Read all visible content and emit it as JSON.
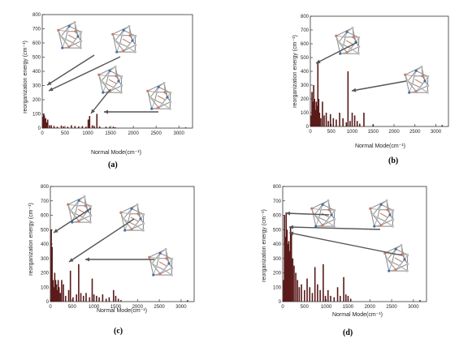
{
  "panels": [
    {
      "label": "(a)"
    },
    {
      "label": "(b)"
    },
    {
      "label": "(c)"
    },
    {
      "label": "(d)"
    }
  ],
  "chart_data": [
    {
      "type": "bar",
      "panel": "(a)",
      "xlabel": "Normal Mode(cm⁻¹)",
      "ylabel": "reorganization energy (cm⁻¹)",
      "xlim": [
        0,
        3300
      ],
      "ylim": [
        0,
        800
      ],
      "xticks": [
        0,
        500,
        1000,
        1500,
        2000,
        2500,
        3000
      ],
      "yticks": [
        0,
        100,
        200,
        300,
        400,
        500,
        600,
        700,
        800
      ],
      "x": [
        15,
        30,
        45,
        60,
        75,
        95,
        120,
        160,
        200,
        260,
        330,
        420,
        470,
        560,
        640,
        720,
        800,
        880,
        960,
        1010,
        1040,
        1100,
        1140,
        1200,
        1260,
        1400,
        1480,
        1560,
        1600,
        3150
      ],
      "values": [
        80,
        100,
        90,
        60,
        70,
        40,
        60,
        20,
        20,
        15,
        10,
        18,
        12,
        10,
        20,
        15,
        12,
        14,
        10,
        60,
        85,
        20,
        15,
        100,
        12,
        10,
        8,
        10,
        6,
        5
      ],
      "colors": {
        "bar": "#5a1a1a",
        "axis": "#333333",
        "arrow": "#555555"
      }
    },
    {
      "type": "bar",
      "panel": "(b)",
      "xlabel": "Normal Mode(cm⁻¹)",
      "ylabel": "reorganization energy (cm⁻¹)",
      "xlim": [
        0,
        3300
      ],
      "ylim": [
        0,
        800
      ],
      "xticks": [
        0,
        500,
        1000,
        1500,
        2000,
        2500,
        3000
      ],
      "yticks": [
        0,
        100,
        200,
        300,
        400,
        500,
        600,
        700,
        800
      ],
      "x": [
        20,
        40,
        60,
        80,
        100,
        120,
        140,
        160,
        180,
        200,
        220,
        250,
        290,
        330,
        380,
        430,
        480,
        550,
        620,
        700,
        780,
        860,
        900,
        950,
        1000,
        1060,
        1120,
        1180,
        1280,
        1500,
        3150
      ],
      "values": [
        80,
        250,
        180,
        300,
        200,
        120,
        180,
        150,
        470,
        200,
        100,
        60,
        180,
        80,
        100,
        40,
        90,
        60,
        50,
        100,
        60,
        30,
        400,
        40,
        100,
        80,
        40,
        20,
        100,
        15,
        10
      ],
      "colors": {
        "bar": "#5a1a1a",
        "axis": "#333333",
        "arrow": "#555555"
      }
    },
    {
      "type": "bar",
      "panel": "(c)",
      "xlabel": "Normal Mode(cm⁻¹)",
      "ylabel": "reorganization energy (cm⁻¹)",
      "xlim": [
        0,
        3300
      ],
      "ylim": [
        0,
        800
      ],
      "xticks": [
        0,
        500,
        1000,
        1500,
        2000,
        2500,
        3000
      ],
      "yticks": [
        0,
        100,
        200,
        300,
        400,
        500,
        600,
        700,
        800
      ],
      "x": [
        20,
        40,
        60,
        80,
        100,
        120,
        140,
        160,
        180,
        200,
        230,
        260,
        300,
        350,
        420,
        460,
        520,
        600,
        650,
        700,
        760,
        820,
        900,
        960,
        1000,
        1060,
        1120,
        1200,
        1280,
        1350,
        1450,
        1500,
        1560,
        1620,
        3150
      ],
      "values": [
        500,
        380,
        150,
        100,
        200,
        150,
        120,
        80,
        150,
        100,
        60,
        150,
        120,
        40,
        80,
        215,
        30,
        50,
        260,
        60,
        40,
        60,
        30,
        160,
        50,
        40,
        30,
        50,
        20,
        30,
        80,
        40,
        20,
        10,
        10
      ],
      "colors": {
        "bar": "#5a1a1a",
        "axis": "#333333",
        "arrow": "#555555"
      }
    },
    {
      "type": "bar",
      "panel": "(d)",
      "xlabel": "Normal Mode(cm⁻¹)",
      "ylabel": "reorganization energy (cm⁻¹)",
      "xlim": [
        0,
        3300
      ],
      "ylim": [
        0,
        800
      ],
      "xticks": [
        0,
        500,
        1000,
        1500,
        2000,
        2500,
        3000
      ],
      "yticks": [
        0,
        100,
        200,
        300,
        400,
        500,
        600,
        700,
        800
      ],
      "x": [
        20,
        40,
        60,
        80,
        100,
        120,
        140,
        160,
        180,
        200,
        230,
        260,
        300,
        340,
        380,
        430,
        500,
        560,
        620,
        680,
        740,
        800,
        860,
        930,
        980,
        1040,
        1100,
        1180,
        1260,
        1320,
        1400,
        1450,
        1500,
        1560,
        3150
      ],
      "values": [
        150,
        600,
        450,
        620,
        500,
        400,
        420,
        350,
        520,
        480,
        300,
        250,
        200,
        150,
        100,
        120,
        80,
        160,
        100,
        60,
        240,
        120,
        80,
        260,
        40,
        80,
        40,
        30,
        100,
        40,
        170,
        50,
        40,
        20,
        10
      ],
      "colors": {
        "bar": "#5a1a1a",
        "axis": "#333333",
        "arrow": "#555555"
      }
    }
  ]
}
